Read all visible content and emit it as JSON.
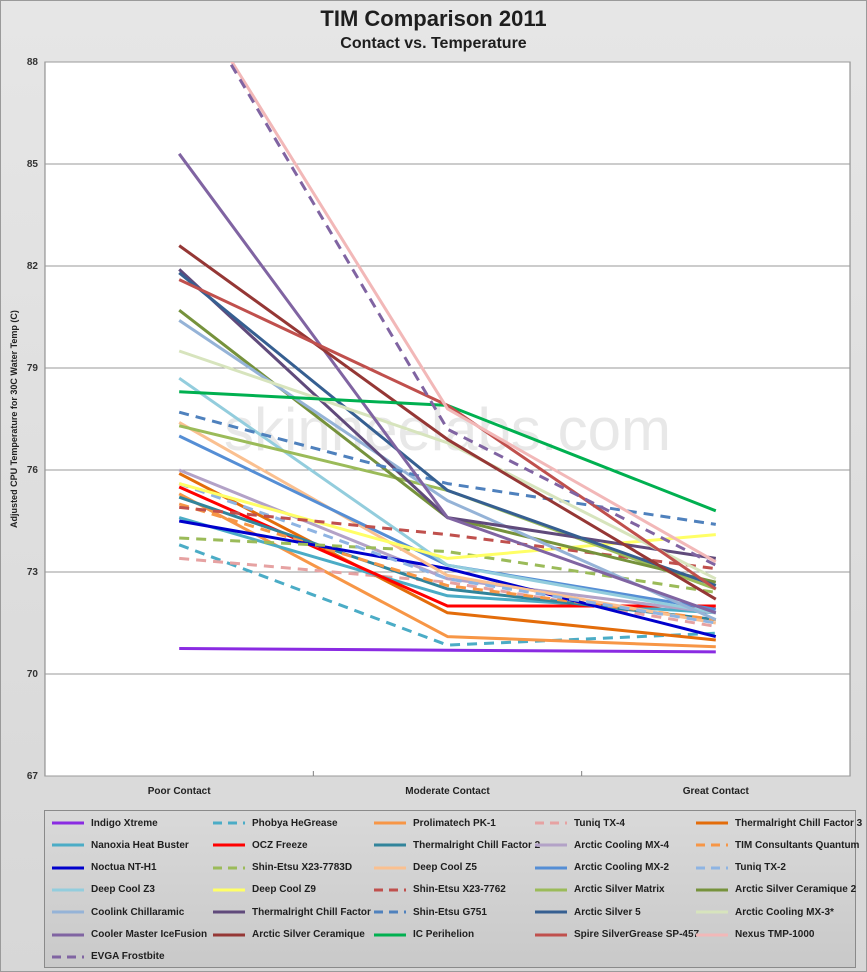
{
  "chart_data": {
    "type": "line",
    "title": "TIM Comparison 2011",
    "subtitle": "Contact vs. Temperature",
    "xlabel": "",
    "ylabel": "Adjusted CPU Temperature for 30C Water Temp (C)",
    "categories": [
      "Poor Contact",
      "Moderate Contact",
      "Great Contact"
    ],
    "ylim": [
      67,
      88
    ],
    "yticks": [
      67,
      70,
      73,
      76,
      79,
      82,
      85,
      88
    ],
    "grid": "horizontal",
    "legend_position": "bottom",
    "watermark": "skinneelabs.com",
    "series": [
      {
        "name": "Indigo Xtreme",
        "values": [
          70.75,
          70.7,
          70.65
        ],
        "color": "#8a2be2",
        "dash": false
      },
      {
        "name": "Phobya HeGrease",
        "values": [
          73.8,
          70.85,
          71.2
        ],
        "color": "#4bacc6",
        "dash": true
      },
      {
        "name": "Prolimatech PK-1",
        "values": [
          75.3,
          71.1,
          70.8
        ],
        "color": "#f79646",
        "dash": false
      },
      {
        "name": "Tuniq TX-4",
        "values": [
          73.4,
          72.7,
          71.4
        ],
        "color": "#e6a2a2",
        "dash": true
      },
      {
        "name": "Thermalright Chill Factor 3",
        "values": [
          75.9,
          71.8,
          71.0
        ],
        "color": "#e36c0a",
        "dash": false
      },
      {
        "name": "Nanoxia Heat Buster",
        "values": [
          74.6,
          72.3,
          71.8
        ],
        "color": "#4bacc6",
        "dash": false
      },
      {
        "name": "OCZ Freeze",
        "values": [
          75.5,
          72.0,
          72.0
        ],
        "color": "#ff0000",
        "dash": false
      },
      {
        "name": "Thermalright Chill Factor 2",
        "values": [
          75.2,
          72.5,
          71.6
        ],
        "color": "#31849b",
        "dash": false
      },
      {
        "name": "Arctic Cooling MX-4",
        "values": [
          76.0,
          72.8,
          71.8
        ],
        "color": "#b3a2c7",
        "dash": false
      },
      {
        "name": "TIM Consultants Quantum",
        "values": [
          75.0,
          72.6,
          71.6
        ],
        "color": "#f79646",
        "dash": true
      },
      {
        "name": "Noctua NT-H1",
        "values": [
          74.5,
          73.1,
          71.1
        ],
        "color": "#0000cc",
        "dash": false
      },
      {
        "name": "Shin-Etsu X23-7783D",
        "values": [
          74.0,
          73.6,
          72.4
        ],
        "color": "#9bbb59",
        "dash": true
      },
      {
        "name": "Deep Cool Z5",
        "values": [
          77.4,
          72.9,
          71.5
        ],
        "color": "#fac090",
        "dash": false
      },
      {
        "name": "Arctic Cooling MX-2",
        "values": [
          77.0,
          73.2,
          71.9
        ],
        "color": "#558ed5",
        "dash": false
      },
      {
        "name": "Tuniq TX-2",
        "values": [
          75.6,
          72.8,
          71.5
        ],
        "color": "#8eb4e3",
        "dash": true
      },
      {
        "name": "Deep Cool Z3",
        "values": [
          78.7,
          73.2,
          71.8
        ],
        "color": "#93cddd",
        "dash": false
      },
      {
        "name": "Deep Cool Z9",
        "values": [
          75.6,
          73.4,
          74.1
        ],
        "color": "#ffff66",
        "dash": false
      },
      {
        "name": "Shin-Etsu X23-7762",
        "values": [
          74.9,
          74.1,
          73.1
        ],
        "color": "#c0504d",
        "dash": true
      },
      {
        "name": "Arctic Silver Matrix",
        "values": [
          77.3,
          75.4,
          72.5
        ],
        "color": "#9bbb59",
        "dash": false
      },
      {
        "name": "Arctic Silver Ceramique 2",
        "values": [
          80.7,
          74.6,
          72.7
        ],
        "color": "#76923c",
        "dash": false
      },
      {
        "name": "Coolink Chillaramic",
        "values": [
          80.4,
          75.1,
          71.6
        ],
        "color": "#95b3d7",
        "dash": false
      },
      {
        "name": "Thermalright Chill Factor",
        "values": [
          81.9,
          74.6,
          73.4
        ],
        "color": "#604a7b",
        "dash": false
      },
      {
        "name": "Shin-Etsu G751",
        "values": [
          77.7,
          75.6,
          74.4
        ],
        "color": "#4f81bd",
        "dash": true
      },
      {
        "name": "Arctic Silver 5",
        "values": [
          81.8,
          75.4,
          72.6
        ],
        "color": "#365f91",
        "dash": false
      },
      {
        "name": "Arctic Cooling MX-3*",
        "values": [
          79.5,
          76.8,
          72.8
        ],
        "color": "#d7e4bd",
        "dash": false
      },
      {
        "name": "Cooler Master IceFusion",
        "values": [
          85.3,
          74.6,
          71.8
        ],
        "color": "#8064a2",
        "dash": false
      },
      {
        "name": "Arctic Silver Ceramique",
        "values": [
          82.6,
          76.9,
          72.2
        ],
        "color": "#953735",
        "dash": false
      },
      {
        "name": "IC Perihelion",
        "values": [
          78.3,
          77.9,
          74.8
        ],
        "color": "#00b050",
        "dash": false
      },
      {
        "name": "Spire SilverGrease SP-457",
        "values": [
          81.6,
          77.9,
          72.5
        ],
        "color": "#c0504d",
        "dash": false
      },
      {
        "name": "Nexus TMP-1000",
        "values": [
          90.5,
          77.8,
          73.3
        ],
        "color": "#f2b8b8",
        "dash": false
      },
      {
        "name": "EVGA Frostbite",
        "values": [
          90.5,
          77.2,
          73.2
        ],
        "color": "#8064a2",
        "dash": true
      }
    ]
  }
}
